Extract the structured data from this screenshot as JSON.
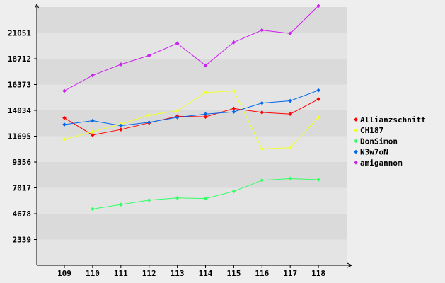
{
  "chart_data": {
    "type": "line",
    "title": "",
    "xlabel": "",
    "ylabel": "",
    "x": [
      "109",
      "110",
      "111",
      "112",
      "113",
      "114",
      "115",
      "116",
      "117",
      "118"
    ],
    "y_ticks": [
      "2339",
      "4678",
      "7017",
      "9356",
      "11695",
      "14034",
      "16373",
      "18712",
      "21051"
    ],
    "ylim": [
      0,
      23390
    ],
    "grid": "horizontal bands",
    "legend_position": "right",
    "series": [
      {
        "name": "Allianzschnitt",
        "color": "#ff0000",
        "values": [
          13350,
          11800,
          12300,
          12900,
          13500,
          13450,
          14200,
          13850,
          13700,
          15050
        ]
      },
      {
        "name": "CH187",
        "color": "#eeff33",
        "values": [
          11400,
          12100,
          12800,
          13600,
          14000,
          15650,
          15800,
          10550,
          10650,
          13400
        ]
      },
      {
        "name": "DonSimon",
        "color": "#33ff66",
        "values": [
          null,
          5100,
          5500,
          5900,
          6100,
          6050,
          6700,
          7700,
          7850,
          7750
        ]
      },
      {
        "name": "N3w7oN",
        "color": "#0066ee",
        "values": [
          12750,
          13100,
          12650,
          12950,
          13400,
          13700,
          13900,
          14700,
          14900,
          15850
        ]
      },
      {
        "name": "amigannom",
        "color": "#cc22ee",
        "values": [
          15800,
          17200,
          18200,
          19000,
          20100,
          18100,
          20200,
          21300,
          21000,
          23500
        ]
      }
    ]
  }
}
